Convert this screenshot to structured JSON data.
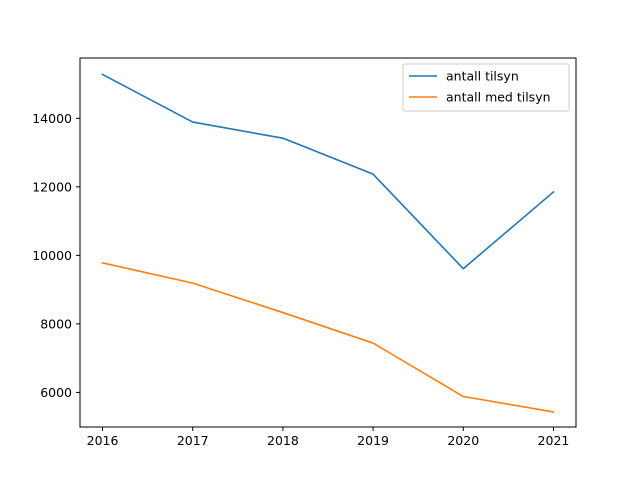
{
  "chart_data": {
    "type": "line",
    "x": [
      2016,
      2017,
      2018,
      2019,
      2020,
      2021
    ],
    "series": [
      {
        "name": "antall tilsyn",
        "color": "#1f77b4",
        "values": [
          15280,
          13890,
          13420,
          12370,
          9610,
          11850
        ]
      },
      {
        "name": "antall med tilsyn",
        "color": "#ff7f0e",
        "values": [
          9780,
          9190,
          8330,
          7440,
          5880,
          5430
        ]
      }
    ],
    "xlim": [
      2015.75,
      2021.25
    ],
    "ylim": [
      4990,
      15760
    ],
    "xticks": [
      2016,
      2017,
      2018,
      2019,
      2020,
      2021
    ],
    "yticks": [
      6000,
      8000,
      10000,
      12000,
      14000
    ],
    "legend_position": "upper right",
    "grid": false
  }
}
